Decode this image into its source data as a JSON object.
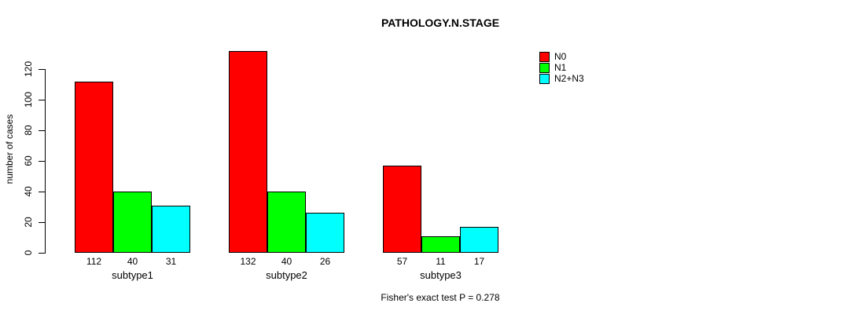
{
  "chart_data": {
    "type": "bar",
    "grouped": true,
    "categories": [
      "subtype1",
      "subtype2",
      "subtype3"
    ],
    "series": [
      {
        "name": "N0",
        "color": "#ff0000",
        "values": [
          112,
          132,
          57
        ]
      },
      {
        "name": "N1",
        "color": "#00ff00",
        "values": [
          40,
          40,
          11
        ]
      },
      {
        "name": "N2+N3",
        "color": "#00ffff",
        "values": [
          31,
          26,
          17
        ]
      }
    ],
    "title": "PATHOLOGY.N.STAGE",
    "xlabel": "",
    "ylabel": "number of cases",
    "ylim": [
      0,
      120
    ],
    "y_ticks": [
      0,
      20,
      40,
      60,
      80,
      100,
      120
    ],
    "bar_value_labels_shown": true,
    "legend_position": "top-right",
    "grid": false,
    "annotation": "Fisher's exact test P = 0.278"
  }
}
